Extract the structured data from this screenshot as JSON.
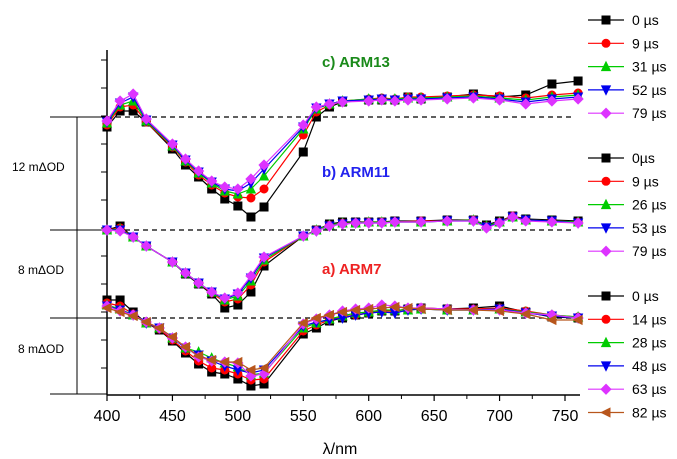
{
  "chart_data": {
    "type": "line",
    "xlabel": "λ/nm",
    "ylabel": "",
    "xlim": [
      400,
      770
    ],
    "x_ticks": [
      400,
      450,
      500,
      550,
      600,
      650,
      700,
      750
    ],
    "scale_bars": [
      "12 mΔOD",
      "8 mΔOD",
      "8 mΔOD"
    ],
    "panels": [
      {
        "label": "c) ARM13",
        "color": "#1a8a1a",
        "x": [
          400,
          410,
          420,
          430,
          450,
          460,
          470,
          480,
          490,
          500,
          510,
          520,
          550,
          560,
          570,
          580,
          600,
          610,
          620,
          630,
          640,
          660,
          680,
          700,
          720,
          740,
          760
        ],
        "series": [
          {
            "name": "0 µs",
            "color": "#000000",
            "marker": "square",
            "values": [
              -1.0,
              0.6,
              0.6,
              -0.5,
              -3.2,
              -4.8,
              -6.0,
              -7.2,
              -8.2,
              -8.9,
              -10.0,
              -9.0,
              -3.5,
              0.0,
              1.0,
              1.5,
              1.7,
              1.7,
              1.7,
              2.0,
              1.8,
              2.0,
              2.3,
              2.0,
              2.2,
              3.3,
              3.6
            ]
          },
          {
            "name": "9 µs",
            "color": "#ff0000",
            "marker": "circle",
            "values": [
              -0.8,
              1.0,
              1.2,
              -0.5,
              -3.0,
              -4.5,
              -5.8,
              -6.8,
              -7.6,
              -8.0,
              -8.1,
              -7.2,
              -1.8,
              0.5,
              1.2,
              1.6,
              1.8,
              1.9,
              1.8,
              2.0,
              2.0,
              2.1,
              2.2,
              2.1,
              1.9,
              2.2,
              2.4
            ]
          },
          {
            "name": "31 µs",
            "color": "#00cc00",
            "marker": "triangle-up",
            "values": [
              -0.6,
              1.2,
              1.6,
              -0.4,
              -2.9,
              -4.4,
              -5.6,
              -6.6,
              -7.4,
              -7.7,
              -7.2,
              -5.9,
              -1.2,
              0.8,
              1.3,
              1.6,
              1.8,
              1.8,
              1.8,
              1.9,
              1.9,
              2.0,
              2.1,
              1.9,
              1.7,
              2.0,
              2.2
            ]
          },
          {
            "name": "52 µs",
            "color": "#0000ee",
            "marker": "triangle-down",
            "values": [
              -0.5,
              1.4,
              2.0,
              -0.3,
              -2.8,
              -4.3,
              -5.5,
              -6.5,
              -7.2,
              -7.4,
              -6.6,
              -5.2,
              -1.0,
              0.9,
              1.3,
              1.6,
              1.7,
              1.8,
              1.7,
              1.8,
              1.8,
              1.9,
              2.0,
              1.8,
              1.5,
              1.8,
              2.0
            ]
          },
          {
            "name": "79 µs",
            "color": "#dd33ff",
            "marker": "diamond",
            "values": [
              -0.4,
              1.6,
              2.3,
              -0.2,
              -2.7,
              -4.2,
              -5.4,
              -6.4,
              -7.0,
              -7.2,
              -6.2,
              -4.8,
              -0.8,
              1.0,
              1.3,
              1.5,
              1.6,
              1.7,
              1.6,
              1.7,
              1.7,
              1.8,
              1.9,
              1.7,
              1.3,
              1.6,
              1.8
            ]
          }
        ]
      },
      {
        "label": "b) ARM11",
        "color": "#2222ee",
        "x": [
          400,
          410,
          420,
          430,
          450,
          460,
          470,
          480,
          490,
          500,
          510,
          520,
          550,
          560,
          570,
          580,
          590,
          600,
          610,
          620,
          640,
          660,
          680,
          690,
          700,
          710,
          720,
          740,
          760
        ],
        "series": [
          {
            "name": "0µs",
            "color": "#000000",
            "marker": "square",
            "values": [
              0.0,
              0.4,
              -0.7,
              -1.6,
              -3.2,
              -4.4,
              -5.4,
              -6.4,
              -7.8,
              -7.5,
              -6.2,
              -3.6,
              -0.6,
              0.0,
              0.6,
              0.8,
              0.8,
              0.8,
              0.8,
              0.9,
              0.9,
              1.0,
              1.0,
              0.5,
              0.9,
              1.4,
              1.1,
              1.0,
              0.9
            ]
          },
          {
            "name": "9 µs",
            "color": "#ff0000",
            "marker": "circle",
            "values": [
              0.0,
              0.2,
              -0.7,
              -1.6,
              -3.2,
              -4.3,
              -5.3,
              -6.3,
              -7.2,
              -6.9,
              -5.5,
              -3.2,
              -0.6,
              0.0,
              0.5,
              0.7,
              0.7,
              0.8,
              0.8,
              0.8,
              0.9,
              0.9,
              1.0,
              0.4,
              0.8,
              1.4,
              1.0,
              0.9,
              0.8
            ]
          },
          {
            "name": "26 µs",
            "color": "#00cc00",
            "marker": "triangle-up",
            "values": [
              0.0,
              0.1,
              -0.7,
              -1.6,
              -3.2,
              -4.3,
              -5.3,
              -6.2,
              -7.0,
              -6.6,
              -5.1,
              -3.0,
              -0.6,
              0.0,
              0.5,
              0.7,
              0.7,
              0.8,
              0.8,
              0.8,
              0.8,
              0.9,
              1.0,
              0.4,
              0.8,
              1.3,
              1.0,
              0.9,
              0.8
            ]
          },
          {
            "name": "53 µs",
            "color": "#0000ee",
            "marker": "triangle-down",
            "values": [
              0.0,
              0.0,
              -0.7,
              -1.6,
              -3.2,
              -4.3,
              -5.3,
              -6.2,
              -6.9,
              -6.4,
              -4.8,
              -2.8,
              -0.6,
              -0.1,
              0.4,
              0.6,
              0.7,
              0.7,
              0.7,
              0.8,
              0.8,
              0.9,
              0.9,
              0.3,
              0.7,
              1.3,
              1.0,
              0.9,
              0.7
            ]
          },
          {
            "name": "79 µs",
            "color": "#dd33ff",
            "marker": "diamond",
            "values": [
              0.0,
              -0.1,
              -0.7,
              -1.6,
              -3.2,
              -4.3,
              -5.3,
              -6.2,
              -6.8,
              -6.3,
              -4.6,
              -2.7,
              -0.6,
              -0.1,
              0.4,
              0.6,
              0.7,
              0.7,
              0.7,
              0.8,
              0.8,
              0.9,
              0.9,
              0.2,
              0.7,
              1.3,
              0.9,
              0.8,
              0.7
            ]
          }
        ]
      },
      {
        "label": "a) ARM7",
        "color": "#ee2222",
        "x": [
          400,
          410,
          420,
          430,
          440,
          450,
          460,
          470,
          480,
          490,
          500,
          510,
          520,
          550,
          560,
          570,
          580,
          590,
          600,
          610,
          620,
          630,
          640,
          660,
          680,
          700,
          720,
          740,
          760
        ],
        "series": [
          {
            "name": "0 µs",
            "color": "#000000",
            "marker": "square",
            "values": [
              1.8,
              1.8,
              0.6,
              -0.5,
              -1.2,
              -2.3,
              -3.5,
              -4.6,
              -5.4,
              -5.6,
              -6.1,
              -6.8,
              -6.6,
              -1.6,
              -1.0,
              -0.3,
              0.0,
              0.3,
              0.5,
              0.7,
              0.7,
              0.9,
              1.0,
              0.9,
              1.0,
              1.2,
              0.6,
              0.1,
              0.0
            ]
          },
          {
            "name": "14 µs",
            "color": "#ff0000",
            "marker": "circle",
            "values": [
              1.5,
              1.2,
              0.4,
              -0.5,
              -1.1,
              -2.2,
              -3.3,
              -4.3,
              -5.0,
              -5.2,
              -5.6,
              -6.2,
              -6.1,
              -1.3,
              -0.7,
              -0.2,
              0.1,
              0.3,
              0.5,
              0.7,
              0.7,
              0.9,
              1.0,
              0.9,
              0.9,
              1.0,
              0.7,
              0.3,
              0.1
            ]
          },
          {
            "name": "28 µs",
            "color": "#00cc00",
            "marker": "triangle-up",
            "values": [
              1.3,
              0.9,
              0.3,
              -0.5,
              -1.0,
              -2.0,
              -3.0,
              -3.4,
              -4.0,
              -4.5,
              -4.9,
              -5.7,
              -5.5,
              -1.0,
              -0.5,
              -0.1,
              0.2,
              0.5,
              0.6,
              0.8,
              0.8,
              0.8,
              0.9,
              0.8,
              0.8,
              0.9,
              0.6,
              0.3,
              0.1
            ]
          },
          {
            "name": "48 µs",
            "color": "#0000ee",
            "marker": "triangle-down",
            "values": [
              1.2,
              0.8,
              0.3,
              -0.5,
              -1.0,
              -2.0,
              -3.0,
              -3.7,
              -4.3,
              -4.8,
              -5.2,
              -5.5,
              -5.2,
              -0.8,
              -0.4,
              -0.2,
              0.0,
              0.3,
              0.5,
              0.6,
              0.5,
              0.8,
              0.9,
              0.8,
              0.8,
              0.9,
              0.5,
              0.2,
              0.0
            ]
          },
          {
            "name": "63 µs",
            "color": "#dd33ff",
            "marker": "diamond",
            "values": [
              1.2,
              0.7,
              0.3,
              -0.4,
              -1.0,
              -2.0,
              -2.9,
              -3.9,
              -4.3,
              -4.4,
              -4.5,
              -5.8,
              -5.6,
              -0.6,
              -0.1,
              0.3,
              0.7,
              0.9,
              1.0,
              1.3,
              1.2,
              1.0,
              1.0,
              0.9,
              0.8,
              0.8,
              0.5,
              0.3,
              0.0
            ]
          },
          {
            "name": "82 µs",
            "color": "#b8561c",
            "marker": "triangle-left",
            "values": [
              1.0,
              0.6,
              0.2,
              -0.4,
              -1.0,
              -1.9,
              -2.9,
              -3.8,
              -4.2,
              -4.4,
              -4.4,
              -5.2,
              -5.0,
              -0.5,
              0.0,
              0.3,
              0.6,
              0.8,
              0.9,
              1.0,
              1.1,
              1.0,
              0.9,
              0.8,
              0.8,
              0.7,
              0.4,
              -0.2,
              -0.2
            ]
          }
        ]
      }
    ]
  }
}
